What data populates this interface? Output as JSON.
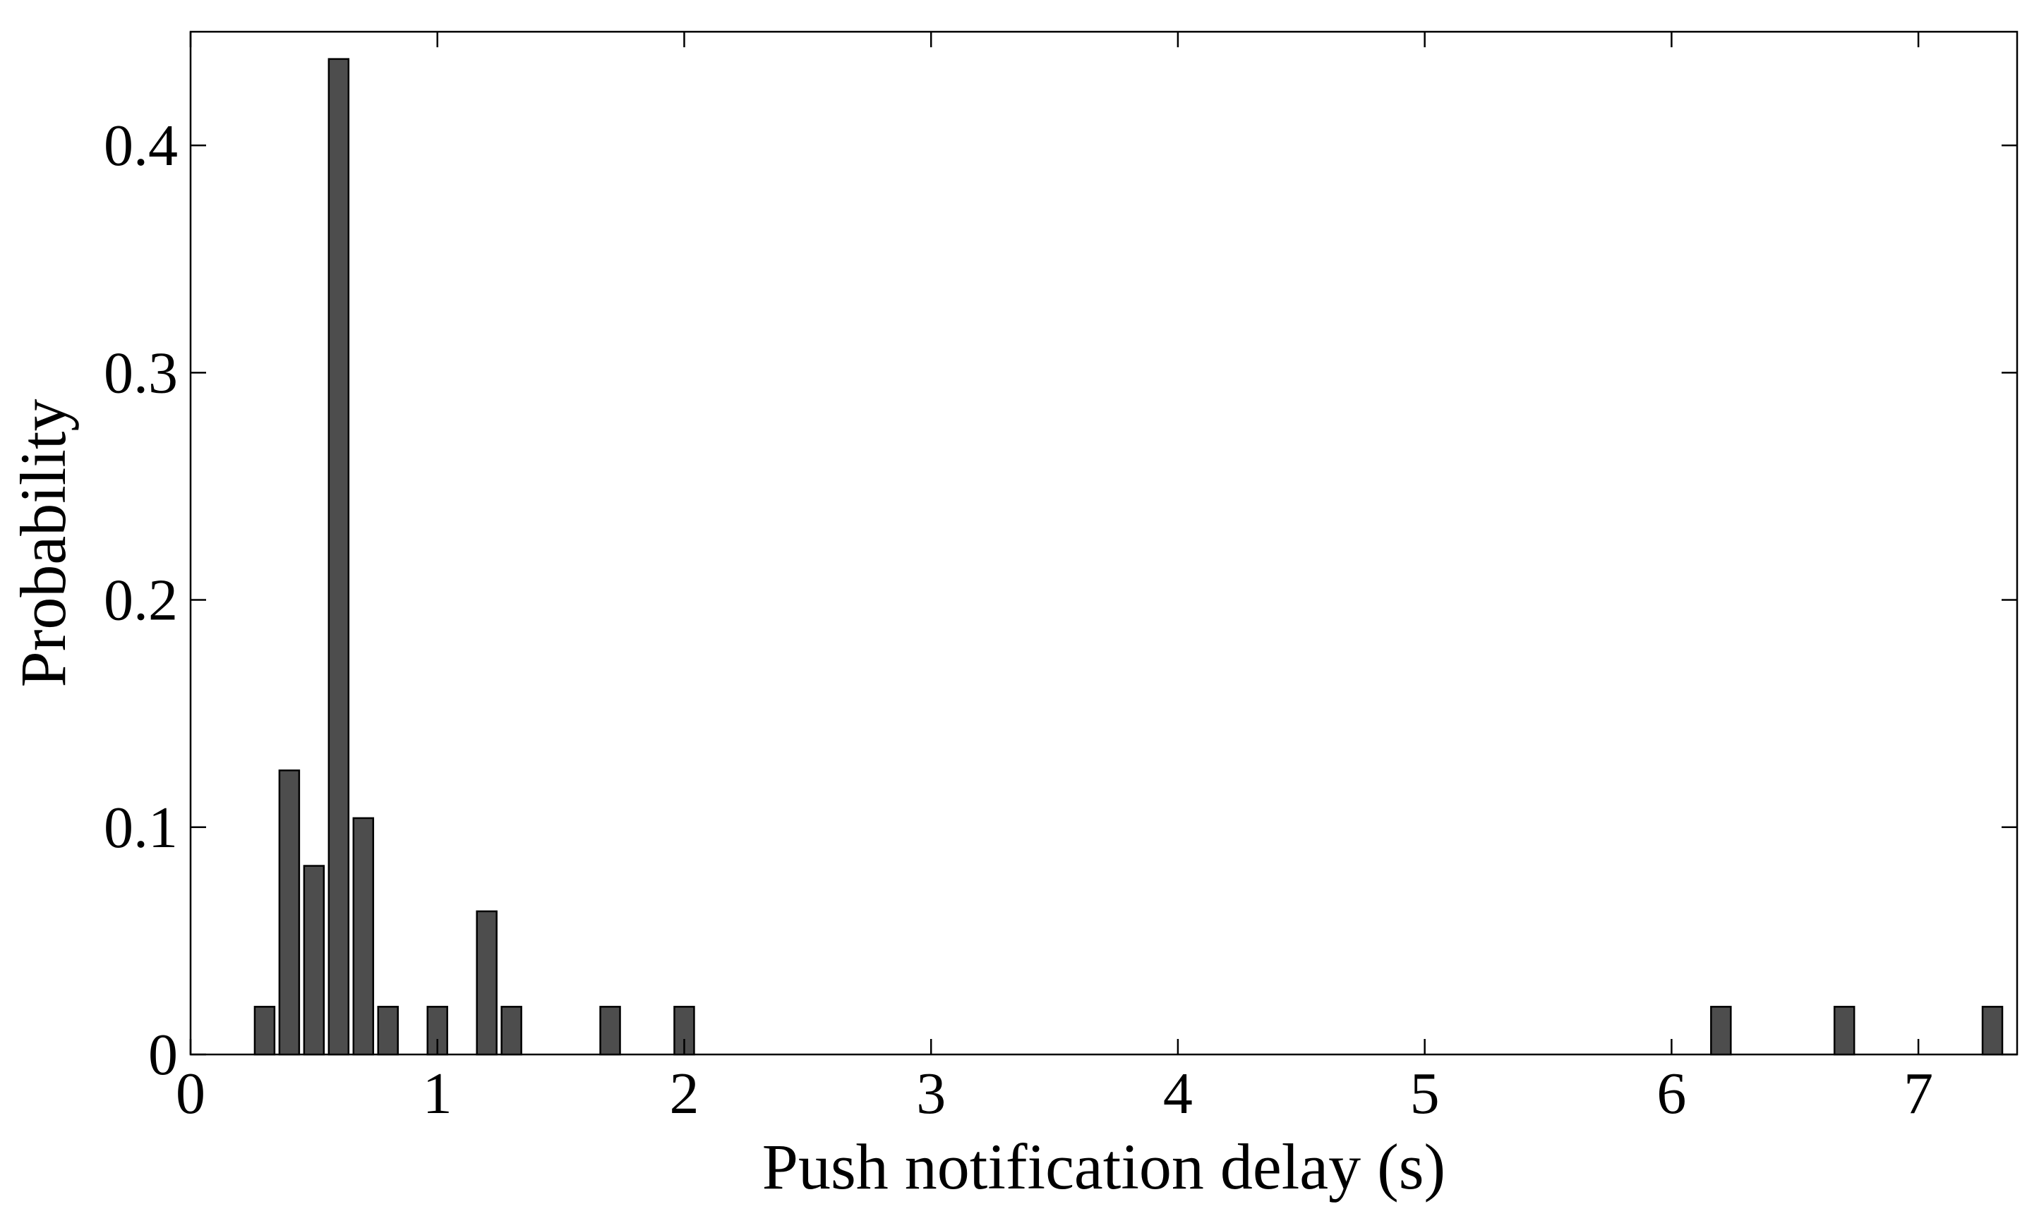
{
  "chart_data": {
    "type": "bar",
    "xlabel": "Push notification delay (s)",
    "ylabel": "Probability",
    "xlim": [
      0,
      7.4
    ],
    "ylim": [
      0,
      0.45
    ],
    "x_ticks": [
      0,
      1,
      2,
      3,
      4,
      5,
      6,
      7
    ],
    "x_tick_labels": [
      "0",
      "1",
      "2",
      "3",
      "4",
      "5",
      "6",
      "7"
    ],
    "y_ticks": [
      0,
      0.1,
      0.2,
      0.3,
      0.4
    ],
    "y_tick_labels": [
      "0",
      "0.1",
      "0.2",
      "0.3",
      "0.4"
    ],
    "bar_width": 0.08,
    "bar_color": "#4d4d4d",
    "grid": false,
    "x": [
      0.3,
      0.4,
      0.5,
      0.6,
      0.7,
      0.8,
      1.0,
      1.2,
      1.3,
      1.7,
      2.0,
      6.2,
      6.7,
      7.3
    ],
    "values": [
      0.021,
      0.125,
      0.083,
      0.438,
      0.104,
      0.021,
      0.021,
      0.063,
      0.021,
      0.021,
      0.021,
      0.021,
      0.021,
      0.021
    ]
  }
}
